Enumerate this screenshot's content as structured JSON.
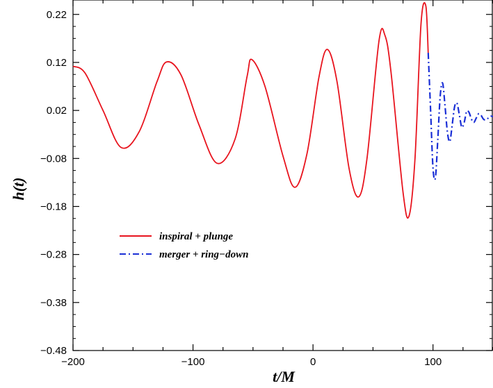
{
  "chart_data": {
    "type": "line",
    "xlabel": "t/M",
    "ylabel": "h(t)",
    "xlim": [
      -200,
      150
    ],
    "ylim": [
      -0.48,
      0.25
    ],
    "x_ticks": [
      -200,
      -100,
      0,
      100
    ],
    "x_tick_labels": [
      "−200",
      "−100",
      "0",
      "100"
    ],
    "y_ticks": [
      0.22,
      0.12,
      0.02,
      -0.08,
      -0.18,
      -0.28,
      -0.38,
      -0.48
    ],
    "y_tick_labels": [
      "0.22",
      "0.12",
      "0.02",
      "−0.08",
      "−0.18",
      "−0.28",
      "−0.38",
      "−0.48"
    ],
    "grid": false,
    "legend_position": "lower-left",
    "series": [
      {
        "name": "inspiral + plunge",
        "color": "#e8141e",
        "dash": "solid",
        "x": [
          -200,
          -190,
          -175,
          -160,
          -145,
          -130,
          -122,
          -110,
          -95,
          -80,
          -65,
          -55,
          -51,
          -40,
          -25,
          -15,
          -5,
          5,
          12,
          20,
          30,
          38,
          45,
          55,
          60,
          65,
          75,
          80,
          85,
          90,
          94,
          96
        ],
        "y": [
          0.112,
          0.098,
          0.02,
          -0.057,
          -0.025,
          0.08,
          0.121,
          0.094,
          -0.01,
          -0.09,
          -0.04,
          0.09,
          0.126,
          0.07,
          -0.075,
          -0.14,
          -0.07,
          0.09,
          0.147,
          0.08,
          -0.1,
          -0.16,
          -0.08,
          0.165,
          0.176,
          0.1,
          -0.15,
          -0.2,
          -0.08,
          0.2,
          0.238,
          0.14
        ]
      },
      {
        "name": "merger + ring−down",
        "color": "#1a2fd6",
        "dash": "dash-dot",
        "x": [
          96,
          98,
          100,
          102,
          104,
          106,
          108,
          110,
          112,
          114,
          116,
          118,
          120,
          122,
          124,
          126,
          128,
          130,
          132,
          134,
          136,
          138,
          140,
          142,
          144,
          146,
          148,
          150
        ],
        "y": [
          0.14,
          0.02,
          -0.1,
          -0.12,
          -0.04,
          0.05,
          0.077,
          0.03,
          -0.025,
          -0.045,
          -0.01,
          0.028,
          0.035,
          0.01,
          -0.015,
          -0.005,
          0.018,
          0.016,
          0.002,
          -0.005,
          0.004,
          0.013,
          0.01,
          0.002,
          0.0,
          0.004,
          0.008,
          0.007
        ]
      }
    ]
  }
}
